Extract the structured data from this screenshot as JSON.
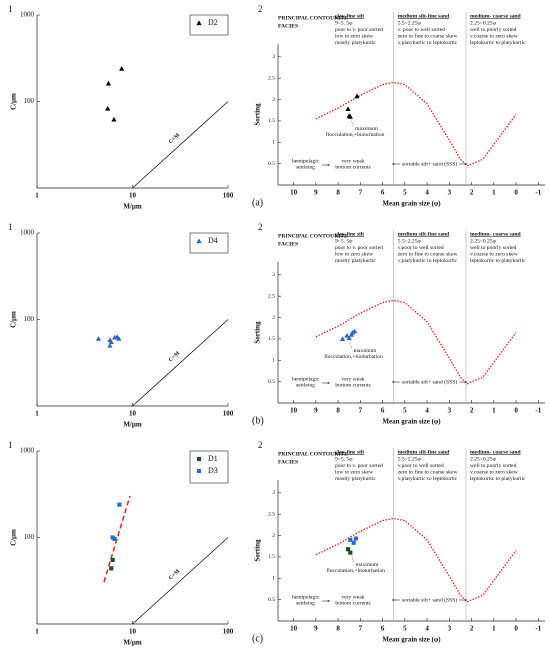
{
  "chart_data": [
    {
      "type": "scatter",
      "panel": "1",
      "xlabel": "M/μm",
      "ylabel": "C/μm",
      "log": true,
      "xlim": [
        1,
        100
      ],
      "ylim": [
        10,
        1000
      ],
      "xticks": [
        1,
        10,
        100
      ],
      "yticks": [
        100,
        1000
      ],
      "reference_label": "C=M",
      "legend": "upper right",
      "series": [
        {
          "name": "D2",
          "marker": "triangle",
          "color": "#000000",
          "x": [
            7.7,
            5.6,
            5.5,
            6.4
          ],
          "values": [
            240,
            162,
            83,
            62
          ]
        }
      ]
    },
    {
      "type": "scatter",
      "panel": "2",
      "letter": "(a)",
      "heading": [
        "PRINCIPAL CONTOURITE",
        "FACIES"
      ],
      "facies": [
        {
          "title": "clay-fine silt",
          "lines": [
            "9~5. 5φ",
            "poor to v. poor sorted",
            "low to zero skew",
            "mostly platykurtic"
          ]
        },
        {
          "title": "medium silt-fine sand",
          "lines": [
            "5.5~2.25φ",
            "v. poor to well sorted",
            "zero to fine to coarse skew",
            "v.platykurtic to leptokurtic"
          ]
        },
        {
          "title": "medium- coarse sand",
          "lines": [
            "2.25~0.25φ",
            "well to poorly sorted",
            "v.coarse to zero skew",
            "leptokurtic to platykurtic"
          ]
        }
      ],
      "note": [
        "maximum",
        "flocculation,+bioturbation"
      ],
      "settling": [
        "hemipelagic",
        "settleing"
      ],
      "currents": [
        "very weak",
        "bottom currents"
      ],
      "sss": "sortable silt+ sand (SSS)",
      "xlabel": "Mean grain size (φ)",
      "ylabel": "Sorting",
      "xlim": [
        10.7,
        -1.3
      ],
      "xticks": [
        10,
        9,
        8,
        7,
        6,
        5,
        4,
        3,
        2,
        1,
        0,
        -1
      ],
      "ylim": [
        0,
        3.3
      ],
      "yticks": [
        0.5,
        1,
        1.5,
        2,
        2.5,
        3
      ],
      "dividers": [
        5.5,
        2.25
      ],
      "trend": {
        "color": "#e02020",
        "x": [
          9,
          8,
          7,
          6,
          5.5,
          5,
          4,
          3,
          2.5,
          2.2,
          1.5,
          1,
          0.5,
          0
        ],
        "values": [
          1.55,
          1.8,
          2.1,
          2.35,
          2.4,
          2.35,
          1.9,
          1.05,
          0.6,
          0.45,
          0.6,
          0.95,
          1.3,
          1.65
        ]
      },
      "series": [
        {
          "marker": "triangle",
          "color": "#000000",
          "x": [
            7.55,
            7.15,
            7.5,
            7.45
          ],
          "values": [
            1.78,
            2.08,
            1.62,
            1.6
          ]
        }
      ]
    },
    {
      "type": "scatter",
      "panel": "1",
      "xlabel": "M/μm",
      "ylabel": "C/μm",
      "log": true,
      "xlim": [
        1,
        100
      ],
      "ylim": [
        10,
        1000
      ],
      "xticks": [
        1,
        10,
        100
      ],
      "yticks": [
        100,
        1000
      ],
      "reference_label": "C=M",
      "legend": "upper right",
      "series": [
        {
          "name": "D4",
          "marker": "triangle",
          "color": "#2a62d4",
          "x": [
            4.4,
            5.8,
            6.5,
            7.2,
            6.9,
            6.0,
            5.8
          ],
          "values": [
            60,
            58,
            62,
            60,
            63,
            55,
            50
          ]
        }
      ]
    },
    {
      "type": "scatter",
      "panel": "2",
      "letter": "(b)",
      "heading": [
        "PRINCIPAL CONTOURITE",
        "FACIES"
      ],
      "facies": [
        {
          "title": "clay-fine silt",
          "lines": [
            "9~5. 5φ",
            "poor to v. poor sorted",
            "low to zero skew",
            "mostly platykurtic"
          ]
        },
        {
          "title": "medium silt-fine sand",
          "lines": [
            "5.5~2.25φ",
            "v.poor to well sorted",
            "zero to fine to coarse skew",
            "v.platykurtic to leptokurtic"
          ]
        },
        {
          "title": "medium- coarse sand",
          "lines": [
            "2.25~0.25φ",
            "well to poorly sorted",
            "v.coarse to zero skew",
            "leptokurtic to platykurtic"
          ]
        }
      ],
      "note": [
        "maximum",
        "flocculation,+bioturbation"
      ],
      "settling": [
        "hemipelagic",
        "settleing"
      ],
      "currents": [
        "very weak",
        "bottom currents"
      ],
      "sss": "sortable silt+ sand (SSS)",
      "xlabel": "Mean grain size (φ)",
      "ylabel": "Sorting",
      "xlim": [
        10.7,
        -1.3
      ],
      "xticks": [
        10,
        9,
        8,
        7,
        6,
        5,
        4,
        3,
        2,
        1,
        0,
        -1
      ],
      "ylim": [
        0,
        3.3
      ],
      "yticks": [
        0.5,
        1,
        1.5,
        2,
        2.5,
        3
      ],
      "dividers": [
        5.5,
        2.25
      ],
      "trend": {
        "color": "#e02020",
        "x": [
          9,
          8,
          7,
          6,
          5.5,
          5,
          4,
          3,
          2.5,
          2.2,
          1.5,
          1,
          0.5,
          0
        ],
        "values": [
          1.55,
          1.8,
          2.1,
          2.35,
          2.4,
          2.35,
          1.9,
          1.05,
          0.6,
          0.45,
          0.6,
          0.95,
          1.3,
          1.65
        ]
      },
      "series": [
        {
          "marker": "triangle",
          "color": "#2a62d4",
          "x": [
            7.8,
            7.6,
            7.4,
            7.25,
            7.5,
            7.35
          ],
          "values": [
            1.5,
            1.58,
            1.6,
            1.68,
            1.52,
            1.65
          ]
        }
      ]
    },
    {
      "type": "scatter",
      "panel": "1",
      "xlabel": "M/μm",
      "ylabel": "C/μm",
      "log": true,
      "xlim": [
        1,
        100
      ],
      "ylim": [
        10,
        1000
      ],
      "xticks": [
        1,
        10,
        100
      ],
      "yticks": [
        100,
        1000
      ],
      "reference_label": "C=M",
      "legend": "upper right",
      "series": [
        {
          "name": "D1",
          "marker": "square",
          "color": "#1f4a2a",
          "x": [
            6.2,
            6.0
          ],
          "values": [
            55,
            44
          ]
        },
        {
          "name": "D3",
          "marker": "square",
          "color": "#2a6ad8",
          "x": [
            7.3,
            6.2,
            6.5
          ],
          "values": [
            240,
            100,
            96
          ]
        }
      ]
    },
    {
      "type": "scatter",
      "panel": "2",
      "letter": "(c)",
      "heading": [
        "PRINCIPAL CONTOURITE",
        "FACIES"
      ],
      "facies": [
        {
          "title": "clay-fine silt",
          "lines": [
            "9~5. 5φ",
            "poor to v. poor sorted",
            "low to zero skew",
            "mostly platykurtic"
          ]
        },
        {
          "title": "medium silt-fine sand",
          "lines": [
            "5.5~2.25φ",
            "v.poor to well sorted",
            "zero to fine to coarse skew",
            "v.platykurtic to leptokurtic"
          ]
        },
        {
          "title": "medium- coarse sand",
          "lines": [
            "2.25~0.25φ",
            "well to poorly sorted",
            "v.coarse to zero skew",
            "leptokurtic to platykurtic"
          ]
        }
      ],
      "note": [
        "maximum",
        "flocculation,+bioturbation"
      ],
      "settling": [
        "hemipelagic",
        "settleing"
      ],
      "currents": [
        "very weak",
        "bottom currents"
      ],
      "sss": "sortable silt+ sand (SSS)",
      "xlabel": "Mean grain size (φ)",
      "ylabel": "Sorting",
      "xlim": [
        10.7,
        -1.3
      ],
      "xticks": [
        10,
        9,
        8,
        7,
        6,
        5,
        4,
        3,
        2,
        1,
        0,
        -1
      ],
      "ylim": [
        0,
        3.3
      ],
      "yticks": [
        0.5,
        1,
        1.5,
        2,
        2.5,
        3
      ],
      "dividers": [
        5.5,
        2.25
      ],
      "trend": {
        "color": "#e02020",
        "x": [
          9,
          8,
          7,
          6,
          5.5,
          5,
          4,
          3,
          2.5,
          2.2,
          1.5,
          1,
          0.5,
          0
        ],
        "values": [
          1.55,
          1.8,
          2.1,
          2.35,
          2.4,
          2.35,
          1.9,
          1.05,
          0.6,
          0.45,
          0.6,
          0.95,
          1.3,
          1.65
        ]
      },
      "series": [
        {
          "marker": "square",
          "color": "#1f4a2a",
          "x": [
            7.45,
            7.55
          ],
          "values": [
            1.6,
            1.68
          ]
        },
        {
          "marker": "square",
          "color": "#2a6ad8",
          "x": [
            7.3,
            7.45,
            7.2
          ],
          "values": [
            1.83,
            1.9,
            1.93
          ]
        }
      ]
    }
  ]
}
